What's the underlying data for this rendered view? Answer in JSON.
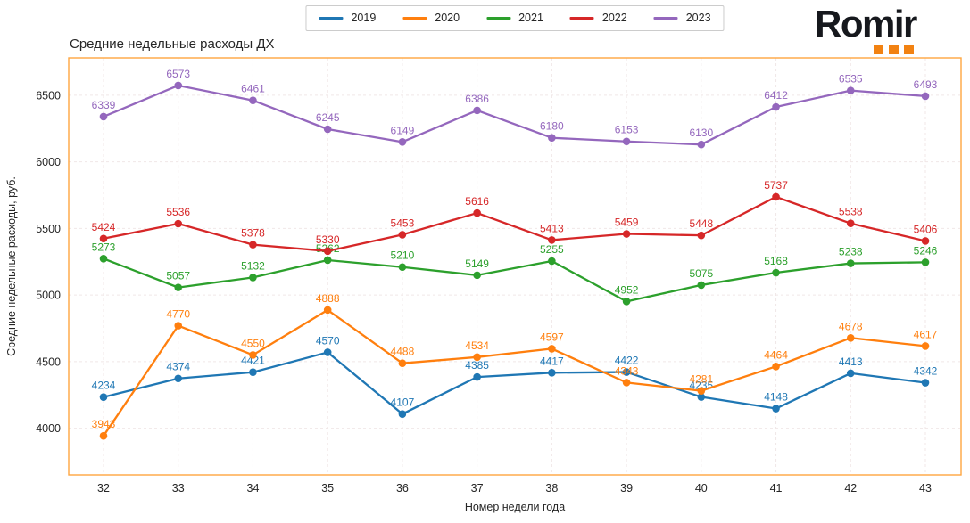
{
  "logo": {
    "text": "Romir",
    "text_color": "#16181d",
    "dot_color": "#f28212"
  },
  "chart_data": {
    "type": "line",
    "title": "Средние недельные расходы ДХ",
    "xlabel": "Номер недели года",
    "ylabel": "Средние недельные расходы, руб.",
    "categories": [
      32,
      33,
      34,
      35,
      36,
      37,
      38,
      39,
      40,
      41,
      42,
      43
    ],
    "series": [
      {
        "name": "2019",
        "color": "#1f77b4",
        "values": [
          4234,
          4374,
          4421,
          4570,
          4107,
          4385,
          4417,
          4422,
          4235,
          4148,
          4413,
          4342
        ]
      },
      {
        "name": "2020",
        "color": "#ff7f0e",
        "values": [
          3943,
          4770,
          4550,
          4888,
          4488,
          4534,
          4597,
          4343,
          4281,
          4464,
          4678,
          4617
        ]
      },
      {
        "name": "2021",
        "color": "#2ca02c",
        "values": [
          5273,
          5057,
          5132,
          5262,
          5210,
          5149,
          5255,
          4952,
          5075,
          5168,
          5238,
          5246
        ]
      },
      {
        "name": "2022",
        "color": "#d62728",
        "values": [
          5424,
          5536,
          5378,
          5330,
          5453,
          5616,
          5413,
          5459,
          5448,
          5737,
          5538,
          5406
        ]
      },
      {
        "name": "2023",
        "color": "#9467bd",
        "values": [
          6339,
          6573,
          6461,
          6245,
          6149,
          6386,
          6180,
          6153,
          6130,
          6412,
          6535,
          6493
        ]
      }
    ],
    "yticks": [
      4000,
      4500,
      5000,
      5500,
      6000,
      6500
    ],
    "ylim": [
      3650,
      6780
    ],
    "grid": true,
    "grid_style": "dashed",
    "legend_position": "top",
    "point_labels": true,
    "plot_border_color": "#ffa640",
    "grid_color": "#f0e7e7",
    "tick_color": "#262626"
  }
}
